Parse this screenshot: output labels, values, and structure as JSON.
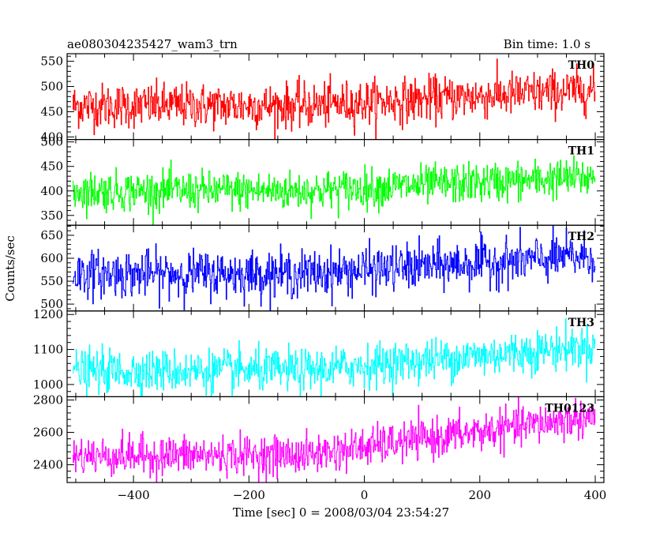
{
  "header": {
    "object_name": "ae080304235427_wam3_trn",
    "bin_time": "Bin time: 1.0 s"
  },
  "chart_data": {
    "type": "line",
    "xlabel": "Time [sec] 0 = 2008/03/04 23:54:27",
    "ylabel": "Counts/sec",
    "xlim": [
      -515,
      415
    ],
    "xticks": [
      -400,
      -200,
      0,
      200,
      400
    ],
    "x_sampling": {
      "start": -505,
      "end": 400,
      "step": 1.0
    },
    "grid": false,
    "panels": [
      {
        "name": "TH0",
        "color": "#ff0000",
        "ylim": [
          395,
          565
        ],
        "yticks": [
          400,
          450,
          500,
          550
        ],
        "trend": {
          "x": [
            -505,
            -100,
            400
          ],
          "y": [
            462,
            462,
            493
          ]
        },
        "noise_sigma": 22
      },
      {
        "name": "TH1",
        "color": "#00ff00",
        "ylim": [
          330,
          505
        ],
        "yticks": [
          350,
          400,
          450,
          500
        ],
        "trend": {
          "x": [
            -505,
            -100,
            400
          ],
          "y": [
            400,
            400,
            428
          ]
        },
        "noise_sigma": 20
      },
      {
        "name": "TH2",
        "color": "#0000ff",
        "ylim": [
          485,
          672
        ],
        "yticks": [
          500,
          550,
          600,
          650
        ],
        "trend": {
          "x": [
            -505,
            -100,
            400
          ],
          "y": [
            566,
            566,
            605
          ]
        },
        "noise_sigma": 25
      },
      {
        "name": "TH3",
        "color": "#00ffff",
        "ylim": [
          965,
          1210
        ],
        "yticks": [
          1000,
          1100,
          1200
        ],
        "trend": {
          "x": [
            -505,
            -100,
            400
          ],
          "y": [
            1038,
            1040,
            1110
          ]
        },
        "noise_sigma": 30
      },
      {
        "name": "TH0123",
        "color": "#ff00ff",
        "ylim": [
          2290,
          2820
        ],
        "yticks": [
          2400,
          2600,
          2800
        ],
        "trend": {
          "x": [
            -505,
            -100,
            400
          ],
          "y": [
            2455,
            2460,
            2700
          ]
        },
        "noise_sigma": 60
      }
    ]
  }
}
